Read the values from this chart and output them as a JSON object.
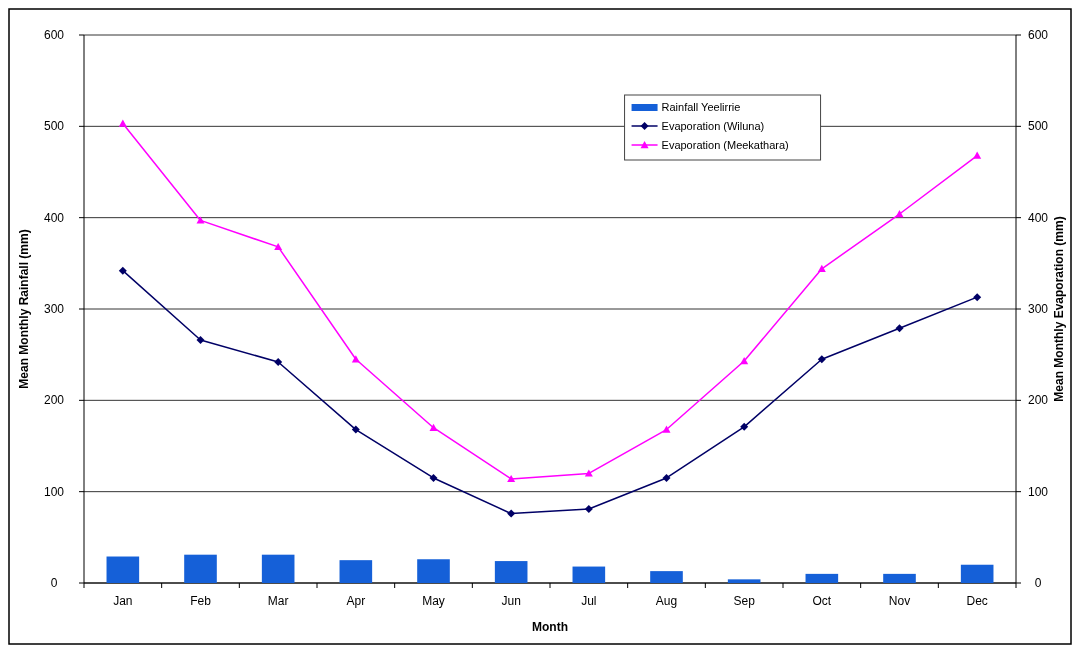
{
  "chart_data": {
    "type": "bar",
    "xlabel": "Month",
    "ylabel": "Mean Monthly Rainfall (mm)",
    "y2label": "Mean Monthly Evaporation (mm)",
    "categories": [
      "Jan",
      "Feb",
      "Mar",
      "Apr",
      "May",
      "Jun",
      "Jul",
      "Aug",
      "Sep",
      "Oct",
      "Nov",
      "Dec"
    ],
    "series": [
      {
        "name": "Rainfall Yeelirrie",
        "color": "#1560d8",
        "values": [
          29,
          31,
          31,
          25,
          26,
          24,
          18,
          13,
          4,
          10,
          10,
          20
        ]
      },
      {
        "name": "Evaporation (Wiluna)",
        "type": "line",
        "marker": "diamond",
        "color": "#000066",
        "values": [
          342,
          266,
          242,
          168,
          115,
          76,
          81,
          115,
          171,
          245,
          279,
          313
        ]
      },
      {
        "name": "Evaporation (Meekathara)",
        "type": "line",
        "marker": "triangle",
        "color": "#ff00ff",
        "values": [
          503,
          397,
          368,
          245,
          170,
          114,
          120,
          168,
          243,
          344,
          404,
          468
        ]
      }
    ],
    "ylim": [
      0,
      600
    ],
    "yticks": [
      0,
      100,
      200,
      300,
      400,
      500,
      600
    ],
    "y2lim": [
      0,
      600
    ],
    "y2ticks": [
      0,
      100,
      200,
      300,
      400,
      500,
      600
    ],
    "grid": "y",
    "legend": "top right"
  }
}
